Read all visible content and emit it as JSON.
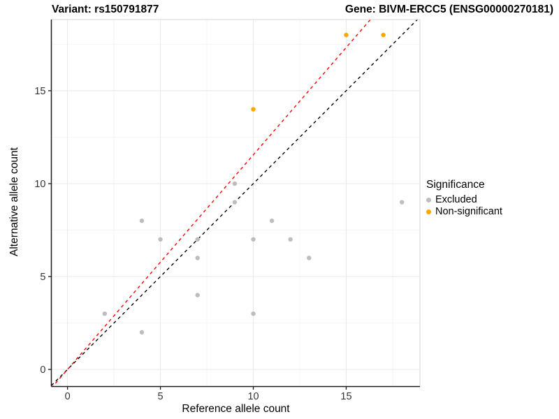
{
  "chart_data": {
    "type": "scatter",
    "title_left": "Variant: rs150791877",
    "title_right": "Gene: BIVM-ERCC5 (ENSG00000270181)",
    "xlabel": "Reference allele count",
    "ylabel": "Alternative allele count",
    "xlim": [
      -0.87,
      18.97
    ],
    "ylim": [
      -0.92,
      18.83
    ],
    "x_ticks": [
      0,
      5,
      10,
      15
    ],
    "y_ticks": [
      0,
      5,
      10,
      15
    ],
    "x_minor_ticks": [
      2.5,
      7.5,
      12.5,
      17.5
    ],
    "y_minor_ticks": [
      2.5,
      7.5,
      12.5,
      17.5
    ],
    "grid": "major+minor",
    "legend": {
      "title": "Significance",
      "position": "right",
      "entries": [
        {
          "label": "Excluded",
          "color": "#BDBDBD"
        },
        {
          "label": "Non-significant",
          "color": "#FFA500"
        }
      ]
    },
    "series": [
      {
        "name": "Excluded",
        "color": "#BDBDBD",
        "points": [
          [
            2,
            3
          ],
          [
            4,
            2
          ],
          [
            4,
            8
          ],
          [
            5,
            7
          ],
          [
            7,
            4
          ],
          [
            7,
            6
          ],
          [
            7,
            7
          ],
          [
            9,
            9
          ],
          [
            9,
            10
          ],
          [
            10,
            3
          ],
          [
            10,
            7
          ],
          [
            11,
            8
          ],
          [
            12,
            7
          ],
          [
            13,
            6
          ],
          [
            18,
            9
          ]
        ]
      },
      {
        "name": "Non-significant",
        "color": "#FFA500",
        "points": [
          [
            10,
            14
          ],
          [
            15,
            18
          ],
          [
            17,
            18
          ]
        ]
      }
    ],
    "ref_lines": [
      {
        "name": "identity-line",
        "slope": 1.0,
        "intercept": 0,
        "color": "#000000",
        "style": "dashed"
      },
      {
        "name": "fitted-ratio-line",
        "slope": 1.155,
        "intercept": 0,
        "color": "#FF0000",
        "style": "dashed"
      }
    ]
  },
  "colors": {
    "background": "#FFFFFF",
    "grid_major": "#E8E8E8",
    "grid_minor": "#F4F4F4",
    "panel_border": "#D6D6D6",
    "axis_line": "#1A1A1A",
    "tick_text": "#333333"
  }
}
